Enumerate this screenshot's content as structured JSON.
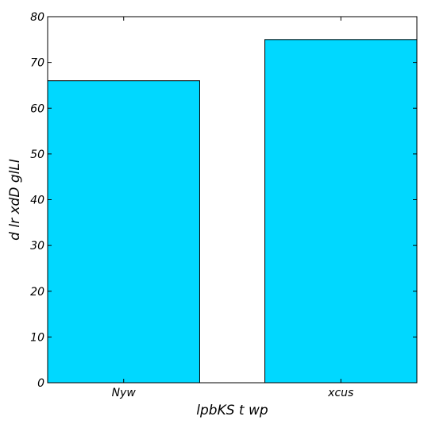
{
  "chart_data": {
    "type": "bar",
    "categories": [
      "Nyw",
      "xcus"
    ],
    "values": [
      66,
      75
    ],
    "xlabel": "lpbKS t wp",
    "ylabel": "d lr xdD glLI",
    "ylim": [
      0,
      80
    ],
    "yticks": [
      0,
      10,
      20,
      30,
      40,
      50,
      60,
      70,
      80
    ],
    "grid": false,
    "legend": "none",
    "bar_color": "#00d8ff",
    "edge_color": "#000000"
  }
}
